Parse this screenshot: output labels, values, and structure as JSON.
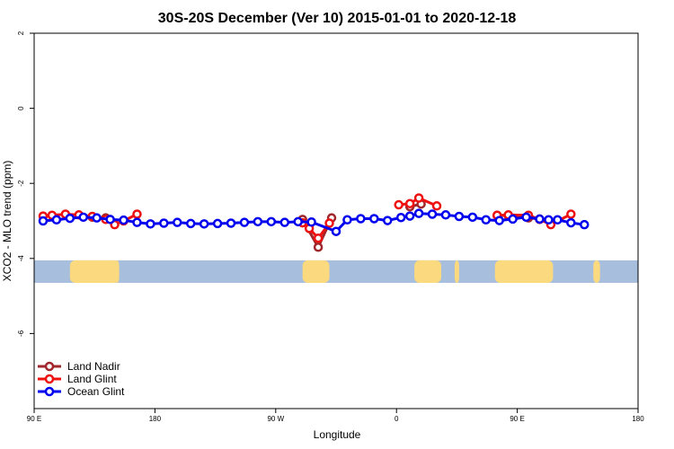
{
  "chart_data": {
    "type": "line",
    "title": "30S-20S December (Ver 10)   2015-01-01 to 2020-12-18",
    "xlabel": "Longitude",
    "ylabel": "XCO2 - MLO trend (ppm)",
    "xlim": [
      -90,
      180
    ],
    "ylim": [
      -8,
      2
    ],
    "x_ticks": [
      {
        "value": -90,
        "label": "90 E"
      },
      {
        "value": -36,
        "label": "180"
      },
      {
        "value": 18,
        "label": "90 W"
      },
      {
        "value": 72,
        "label": "0"
      },
      {
        "value": 126,
        "label": "90 E"
      },
      {
        "value": 180,
        "label": "180"
      }
    ],
    "y_ticks": [
      {
        "value": 2,
        "label": "2"
      },
      {
        "value": 0,
        "label": "0"
      },
      {
        "value": -2,
        "label": "-2"
      },
      {
        "value": -4,
        "label": "-4"
      },
      {
        "value": -6,
        "label": "-6"
      }
    ],
    "map_band": {
      "y_range": [
        -4.65,
        -4.05
      ],
      "ocean_color": "#a8bedd",
      "land_color": "#fbd97f",
      "land_spans": [
        [
          -74,
          -52
        ],
        [
          30,
          42
        ],
        [
          80,
          92
        ],
        [
          116,
          142
        ],
        [
          -54,
          -52
        ],
        [
          118,
          120
        ],
        [
          160,
          163
        ],
        [
          98,
          100
        ]
      ]
    },
    "legend": {
      "position": "bottom-left"
    },
    "series": [
      {
        "name": "Land Nadir",
        "color": "#a0272b",
        "points": [
          [
            -64,
            -2.9
          ],
          [
            -58,
            -2.92
          ],
          [
            30,
            -2.96
          ],
          [
            37,
            -3.7
          ],
          [
            43,
            -2.92
          ],
          [
            78,
            -2.62
          ],
          [
            83,
            -2.55
          ],
          [
            117,
            -2.85
          ],
          [
            122,
            -2.86
          ],
          [
            131,
            -2.92
          ],
          [
            136,
            -2.95
          ]
        ]
      },
      {
        "name": "Land Glint",
        "color": "#ee1111",
        "points": [
          [
            -86,
            -2.87
          ],
          [
            -82,
            -2.85
          ],
          [
            -76,
            -2.82
          ],
          [
            -70,
            -2.84
          ],
          [
            -64,
            -2.88
          ],
          [
            -58,
            -2.96
          ],
          [
            -54,
            -3.1
          ],
          [
            -50,
            -3.0
          ],
          [
            -44,
            -2.82
          ],
          [
            30,
            -3.05
          ],
          [
            33,
            -3.2
          ],
          [
            37,
            -3.46
          ],
          [
            42,
            -3.06
          ],
          [
            73,
            -2.57
          ],
          [
            78,
            -2.54
          ],
          [
            82,
            -2.39
          ],
          [
            90,
            -2.6
          ],
          [
            117,
            -2.85
          ],
          [
            122,
            -2.84
          ],
          [
            131,
            -2.85
          ],
          [
            136,
            -2.96
          ],
          [
            141,
            -3.1
          ],
          [
            150,
            -2.82
          ]
        ]
      },
      {
        "name": "Ocean Glint",
        "color": "#0000ee",
        "points": [
          [
            -86,
            -3.0
          ],
          [
            -80,
            -2.97
          ],
          [
            -74,
            -2.93
          ],
          [
            -68,
            -2.9
          ],
          [
            -62,
            -2.92
          ],
          [
            -56,
            -2.96
          ],
          [
            -50,
            -2.98
          ],
          [
            -44,
            -3.04
          ],
          [
            -38,
            -3.08
          ],
          [
            -32,
            -3.06
          ],
          [
            -26,
            -3.04
          ],
          [
            -20,
            -3.07
          ],
          [
            -14,
            -3.08
          ],
          [
            -8,
            -3.07
          ],
          [
            -2,
            -3.06
          ],
          [
            4,
            -3.04
          ],
          [
            10,
            -3.02
          ],
          [
            16,
            -3.02
          ],
          [
            22,
            -3.04
          ],
          [
            28,
            -3.02
          ],
          [
            34,
            -3.03
          ],
          [
            45,
            -3.28
          ],
          [
            50,
            -2.97
          ],
          [
            56,
            -2.94
          ],
          [
            62,
            -2.94
          ],
          [
            68,
            -2.99
          ],
          [
            74,
            -2.91
          ],
          [
            78,
            -2.87
          ],
          [
            82,
            -2.8
          ],
          [
            88,
            -2.82
          ],
          [
            94,
            -2.84
          ],
          [
            100,
            -2.88
          ],
          [
            106,
            -2.9
          ],
          [
            112,
            -2.97
          ],
          [
            118,
            -2.99
          ],
          [
            124,
            -2.95
          ],
          [
            130,
            -2.9
          ],
          [
            136,
            -2.95
          ],
          [
            140,
            -2.97
          ],
          [
            144,
            -2.97
          ],
          [
            150,
            -3.05
          ],
          [
            156,
            -3.1
          ]
        ]
      }
    ]
  }
}
